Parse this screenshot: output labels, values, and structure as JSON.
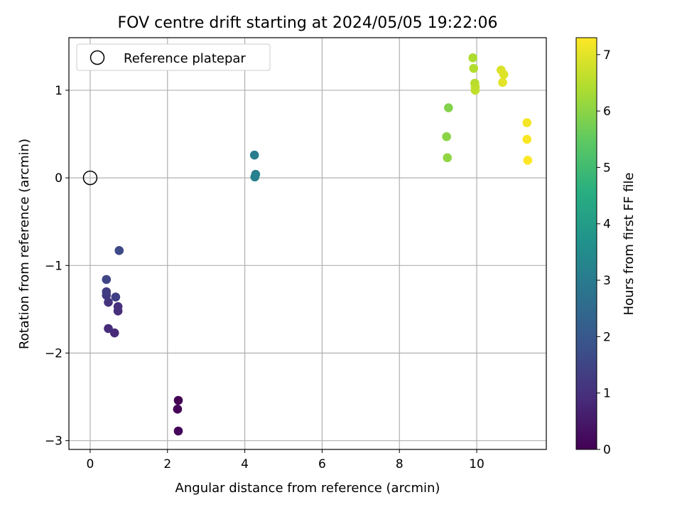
{
  "chart_data": {
    "type": "scatter",
    "title": "FOV centre drift starting at 2024/05/05 19:22:06",
    "xlabel": "Angular distance from reference (arcmin)",
    "ylabel": "Rotation from reference (arcmin)",
    "colorbar_label": "Hours from first FF file",
    "xlim": [
      -0.55,
      11.8
    ],
    "ylim": [
      -3.1,
      1.6
    ],
    "clim": [
      0,
      7.3
    ],
    "colormap": "viridis",
    "grid": true,
    "legend_position": "top-left",
    "xticks": [
      0,
      2,
      4,
      6,
      8,
      10
    ],
    "yticks": [
      -3,
      -2,
      -1,
      0,
      1
    ],
    "cticks": [
      0,
      1,
      2,
      3,
      4,
      5,
      6,
      7
    ],
    "tick_labels": {
      "x": [
        "0",
        "2",
        "4",
        "6",
        "8",
        "10"
      ],
      "y": [
        "−3",
        "−2",
        "−1",
        "0",
        "1"
      ],
      "c": [
        "0",
        "1",
        "2",
        "3",
        "4",
        "5",
        "6",
        "7"
      ]
    },
    "reference": {
      "name": "Reference platepar",
      "x": 0.0,
      "y": 0.0
    },
    "points": [
      {
        "x": 2.28,
        "y": -2.54,
        "hours": 0.0
      },
      {
        "x": 2.26,
        "y": -2.64,
        "hours": 0.05
      },
      {
        "x": 2.28,
        "y": -2.89,
        "hours": 0.1
      },
      {
        "x": 0.63,
        "y": -1.77,
        "hours": 0.85
      },
      {
        "x": 0.47,
        "y": -1.72,
        "hours": 0.9
      },
      {
        "x": 0.72,
        "y": -1.52,
        "hours": 0.95
      },
      {
        "x": 0.72,
        "y": -1.47,
        "hours": 1.0
      },
      {
        "x": 0.47,
        "y": -1.42,
        "hours": 1.05
      },
      {
        "x": 0.42,
        "y": -1.34,
        "hours": 1.2
      },
      {
        "x": 0.42,
        "y": -1.3,
        "hours": 1.3
      },
      {
        "x": 0.66,
        "y": -1.36,
        "hours": 1.35
      },
      {
        "x": 0.42,
        "y": -1.16,
        "hours": 1.5
      },
      {
        "x": 0.75,
        "y": -0.83,
        "hours": 1.6
      },
      {
        "x": 4.25,
        "y": 0.26,
        "hours": 3.05
      },
      {
        "x": 4.28,
        "y": 0.04,
        "hours": 3.1
      },
      {
        "x": 4.26,
        "y": 0.01,
        "hours": 3.15
      },
      {
        "x": 9.27,
        "y": 0.8,
        "hours": 5.9
      },
      {
        "x": 9.22,
        "y": 0.47,
        "hours": 6.0
      },
      {
        "x": 9.24,
        "y": 0.23,
        "hours": 6.05
      },
      {
        "x": 9.9,
        "y": 1.37,
        "hours": 6.4
      },
      {
        "x": 9.92,
        "y": 1.25,
        "hours": 6.45
      },
      {
        "x": 9.95,
        "y": 1.08,
        "hours": 6.5
      },
      {
        "x": 9.96,
        "y": 1.04,
        "hours": 6.55
      },
      {
        "x": 9.96,
        "y": 1.0,
        "hours": 6.6
      },
      {
        "x": 10.63,
        "y": 1.23,
        "hours": 6.9
      },
      {
        "x": 10.7,
        "y": 1.18,
        "hours": 6.95
      },
      {
        "x": 10.67,
        "y": 1.09,
        "hours": 7.0
      },
      {
        "x": 11.3,
        "y": 0.63,
        "hours": 7.2
      },
      {
        "x": 11.3,
        "y": 0.44,
        "hours": 7.25
      },
      {
        "x": 11.32,
        "y": 0.2,
        "hours": 7.3
      }
    ]
  }
}
